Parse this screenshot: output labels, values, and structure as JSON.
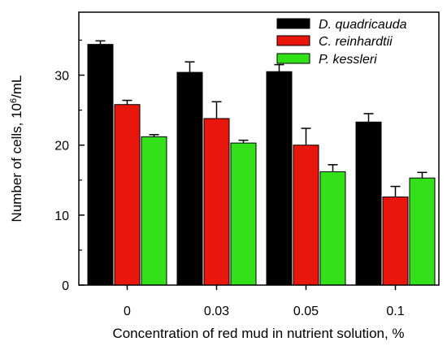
{
  "chart_data": {
    "type": "bar",
    "categories": [
      "0",
      "0.03",
      "0.05",
      "0.1"
    ],
    "series": [
      {
        "name": "D. quadricauda",
        "color": "#000000",
        "values": [
          34.4,
          30.4,
          30.5,
          23.3
        ],
        "errors": [
          0.5,
          1.5,
          1.0,
          1.2
        ]
      },
      {
        "name": "C. reinhardtii",
        "color": "#e8160c",
        "values": [
          25.8,
          23.8,
          20.0,
          12.6
        ],
        "errors": [
          0.6,
          2.4,
          2.4,
          1.5
        ]
      },
      {
        "name": "P. kessleri",
        "color": "#33e01a",
        "values": [
          21.2,
          20.3,
          16.2,
          15.3
        ],
        "errors": [
          0.3,
          0.4,
          1.0,
          0.8
        ]
      }
    ],
    "yticks": [
      0,
      10,
      20,
      30
    ],
    "ylim": [
      0,
      39
    ],
    "xlabel": "Concentration of red mud in nutrient solution, %",
    "ylabel_main": "Number of cells, 10",
    "ylabel_sup": "6",
    "ylabel_unit": "/mL",
    "legend_position": "top-right",
    "grid": false
  }
}
